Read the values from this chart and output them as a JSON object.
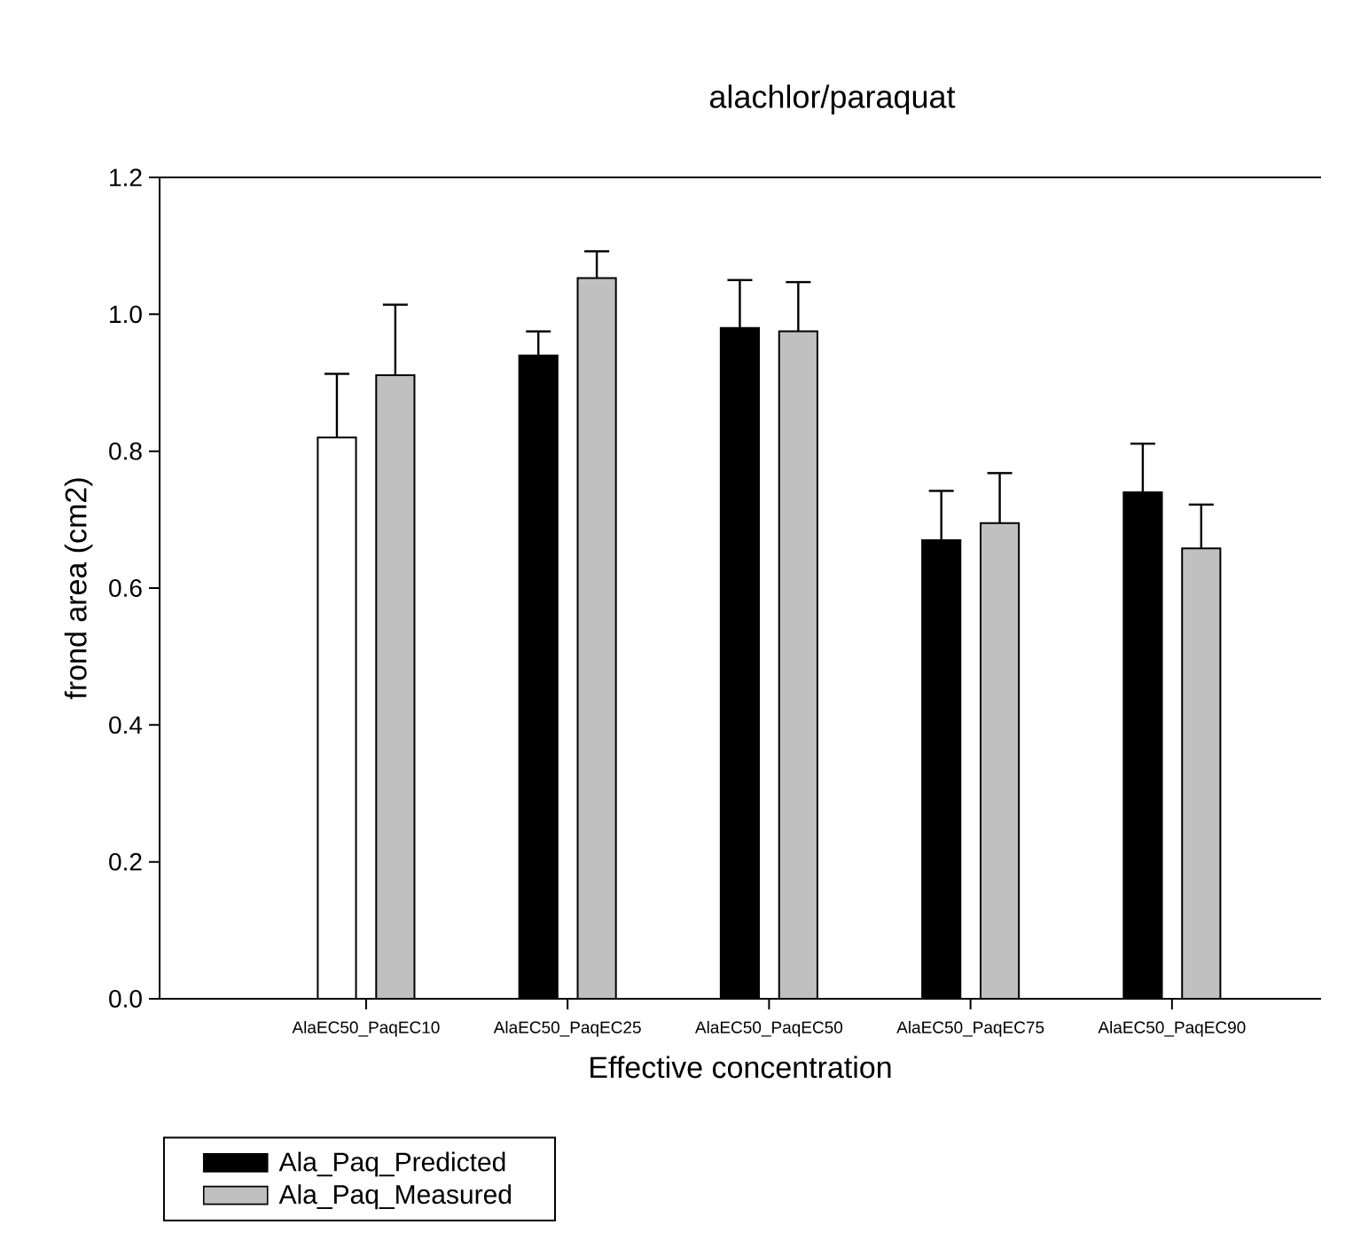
{
  "chart_data": {
    "type": "bar",
    "title": "alachlor/paraquat",
    "xlabel": "Effective concentration",
    "ylabel": "frond area (cm2)",
    "categories": [
      "AlaEC50_PaqEC10",
      "AlaEC50_PaqEC25",
      "AlaEC50_PaqEC50",
      "AlaEC50_PaqEC75",
      "AlaEC50_PaqEC90"
    ],
    "series": [
      {
        "name": "Ala_Paq_Predicted",
        "color": "#000000",
        "colors": [
          "#ffffff",
          "#000000",
          "#000000",
          "#000000",
          "#000000"
        ],
        "values": [
          0.82,
          0.94,
          0.98,
          0.67,
          0.74
        ],
        "errors": [
          [
            0.82,
            0.913
          ],
          [
            0.94,
            0.975
          ],
          [
            0.98,
            1.05
          ],
          [
            0.67,
            0.742
          ],
          [
            0.74,
            0.811
          ]
        ]
      },
      {
        "name": "Ala_Paq_Measured",
        "color": "#c0c0c0",
        "colors": [
          "#c0c0c0",
          "#c0c0c0",
          "#c0c0c0",
          "#c0c0c0",
          "#c0c0c0"
        ],
        "values": [
          0.911,
          1.053,
          0.975,
          0.695,
          0.658
        ],
        "errors": [
          [
            0.911,
            1.014
          ],
          [
            1.053,
            1.092
          ],
          [
            0.975,
            1.047
          ],
          [
            0.695,
            0.768
          ],
          [
            0.658,
            0.722
          ]
        ]
      }
    ],
    "ylim": [
      0,
      1.2
    ],
    "yticks": [
      {
        "value": 0,
        "label": "0.0"
      },
      {
        "value": 0.2,
        "label": "0.2"
      },
      {
        "value": 0.4,
        "label": "0.4"
      },
      {
        "value": 0.6,
        "label": "0.6"
      },
      {
        "value": 0.8,
        "label": "0.8"
      },
      {
        "value": 1.0,
        "label": "1.0"
      },
      {
        "value": 1.2,
        "label": "1.2"
      }
    ],
    "legend": "bottom left"
  }
}
